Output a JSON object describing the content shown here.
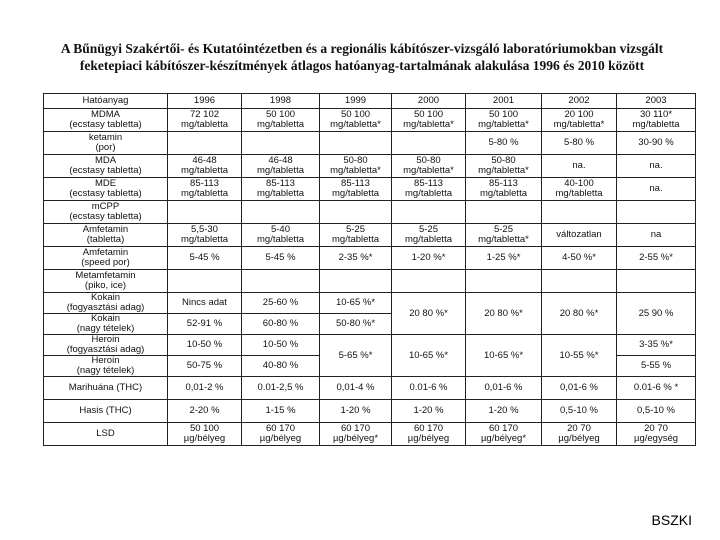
{
  "title": {
    "line1": "A Bűnügyi Szakértői- és Kutatóintézetben és a regionális kábítószer-vizsgáló laboratóriumokban vizsgált",
    "line2": "feketepiaci kábítószer-készítmények átlagos hatóanyag-tartalmának alakulása 1996 és 2010 között"
  },
  "table": {
    "headers": [
      "Hatóanyag",
      "1996",
      "1998",
      "1999",
      "2000",
      "2001",
      "2002",
      "2003"
    ],
    "rows": [
      {
        "name": "MDMA\n(ecstasy tabletta)",
        "cells": [
          {
            "v": "72 102\nmg/tabletta"
          },
          {
            "v": "50 100\nmg/tabletta"
          },
          {
            "v": "50 100\nmg/tabletta*"
          },
          {
            "v": "50 100\nmg/tabletta*"
          },
          {
            "v": "50 100\nmg/tabletta*"
          },
          {
            "v": "20 100\nmg/tabletta*"
          },
          {
            "v": "30 110*\nmg/tabletta"
          }
        ]
      },
      {
        "name": "ketamin\n(por)",
        "cells": [
          {
            "v": ""
          },
          {
            "v": ""
          },
          {
            "v": ""
          },
          {
            "v": ""
          },
          {
            "v": "5-80 %"
          },
          {
            "v": "5-80 %"
          },
          {
            "v": "30-90 %"
          }
        ]
      },
      {
        "name": "MDA\n(ecstasy tabletta)",
        "cells": [
          {
            "v": "46-48\nmg/tabletta"
          },
          {
            "v": "46-48\nmg/tabletta"
          },
          {
            "v": "50-80\nmg/tabletta*"
          },
          {
            "v": "50-80\nmg/tabletta*"
          },
          {
            "v": "50-80\nmg/tabletta*"
          },
          {
            "v": "na."
          },
          {
            "v": "na."
          }
        ]
      },
      {
        "name": "MDE\n(ecstasy tabletta)",
        "cells": [
          {
            "v": "85-113\nmg/tabletta"
          },
          {
            "v": "85-113\nmg/tabletta"
          },
          {
            "v": "85-113\nmg/tabletta"
          },
          {
            "v": "85-113\nmg/tabletta"
          },
          {
            "v": "85-113\nmg/tabletta"
          },
          {
            "v": "40-100\nmg/tabletta"
          },
          {
            "v": "na."
          }
        ]
      },
      {
        "name": "mCPP\n(ecstasy tabletta)",
        "cells": [
          {
            "v": ""
          },
          {
            "v": ""
          },
          {
            "v": ""
          },
          {
            "v": ""
          },
          {
            "v": ""
          },
          {
            "v": ""
          },
          {
            "v": ""
          }
        ]
      },
      {
        "name": "Amfetamin\n(tabletta)",
        "cells": [
          {
            "v": "5,5-30\nmg/tabletta"
          },
          {
            "v": "5-40\nmg/tabletta"
          },
          {
            "v": "5-25\nmg/tabletta"
          },
          {
            "v": "5-25\nmg/tabletta"
          },
          {
            "v": "5-25\nmg/tabletta*"
          },
          {
            "v": "változatlan"
          },
          {
            "v": "na"
          }
        ]
      },
      {
        "name": "Amfetamin\n(speed por)",
        "cells": [
          {
            "v": "5-45 %"
          },
          {
            "v": "5-45 %"
          },
          {
            "v": "2-35 %*"
          },
          {
            "v": "1-20 %*"
          },
          {
            "v": "1-25 %*"
          },
          {
            "v": "4-50 %*"
          },
          {
            "v": "2-55 %*"
          }
        ]
      },
      {
        "name": "Metamfetamin\n(piko, ice)",
        "cells": [
          {
            "v": ""
          },
          {
            "v": ""
          },
          {
            "v": ""
          },
          {
            "v": ""
          },
          {
            "v": ""
          },
          {
            "v": ""
          },
          {
            "v": ""
          }
        ]
      }
    ],
    "kokain": {
      "name1": "Kokain\n(fogyasztási adag)",
      "name2": "Kokain\n(nagy tételek)",
      "y1996_a": "Nincs adat",
      "y1996_b": "52-91 %",
      "y1998_a": "25-60 %",
      "y1998_b": "60-80 %",
      "y1999_a": "10-65 %*",
      "y1999_b": "50-80 %*",
      "y2000": "20 80 %*",
      "y2001": "20 80 %*",
      "y2002": "20 80 %*",
      "y2003": "25 90 %"
    },
    "heroin": {
      "name1": "Heroin\n(fogyasztási adag)",
      "name2": "Heroin\n(nagy tételek)",
      "y1996_a": "10-50 %",
      "y1996_b": "50-75 %",
      "y1998_a": "10-50 %",
      "y1998_b": "40-80 %",
      "y1999": "5-65 %*",
      "y2000": "10-65 %*",
      "y2001": "10-65 %*",
      "y2002": "10-55 %*",
      "y2003_a": "3-35 %*",
      "y2003_b": "5-55 %"
    },
    "rows2": [
      {
        "name": "Marihuána (THC)",
        "cells": [
          {
            "v": "0,01-2 %"
          },
          {
            "v": "0.01-2,5 %"
          },
          {
            "v": "0,01-4 %"
          },
          {
            "v": "0.01-6 %"
          },
          {
            "v": "0,01-6 %"
          },
          {
            "v": "0,01-6 %"
          },
          {
            "v": "0.01-6 % *"
          }
        ]
      },
      {
        "name": "Hasis (THC)",
        "cells": [
          {
            "v": "2-20 %"
          },
          {
            "v": "1-15 %"
          },
          {
            "v": "1-20 %"
          },
          {
            "v": "1-20 %"
          },
          {
            "v": "1-20 %"
          },
          {
            "v": "0,5-10 %"
          },
          {
            "v": "0,5-10 %"
          }
        ]
      },
      {
        "name": "LSD",
        "cells": [
          {
            "v": "50 100\nµg/bélyeg"
          },
          {
            "v": "60 170\nµg/bélyeg"
          },
          {
            "v": "60 170\nµg/bélyeg*"
          },
          {
            "v": "60 170\nµg/bélyeg"
          },
          {
            "v": "60 170\nµg/bélyeg*"
          },
          {
            "v": "20 70\nµg/bélyeg"
          },
          {
            "v": "20 70\nµg/egység"
          }
        ]
      }
    ]
  },
  "footer": {
    "label": "BSZKI"
  }
}
